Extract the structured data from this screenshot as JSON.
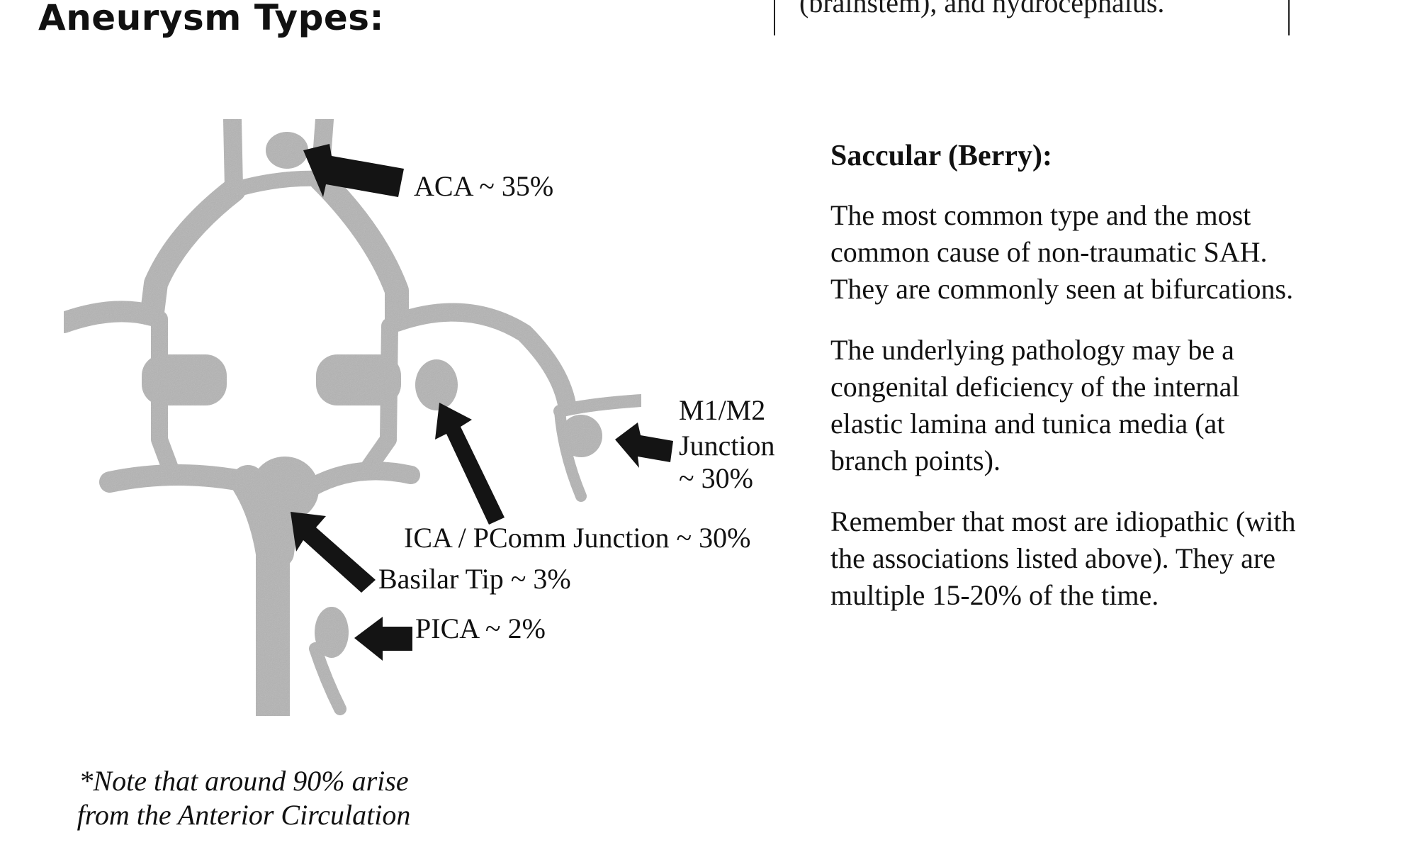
{
  "heading": "Aneurysm Types:",
  "top_box_text": "(brainstem), and hydrocephalus.",
  "labels": {
    "aca": "ACA ~ 35%",
    "m1m2_line1": "M1/M2",
    "m1m2_line2": "Junction",
    "m1m2_line3": "~ 30%",
    "ica": "ICA / PComm Junction ~ 30%",
    "basilar": "Basilar Tip ~ 3%",
    "pica": "PICA ~ 2%"
  },
  "note": {
    "line1": "*Note that around 90% arise",
    "line2": "from the Anterior Circulation"
  },
  "saccular": {
    "title": "Saccular (Berry):",
    "p1": "The most common type and the most common cause of non-traumatic SAH. They are commonly seen at bifurcations.",
    "p2": "The underlying pathology may be a congenital deficiency of the internal elastic lamina and tunica media (at branch points).",
    "p3": "Remember that most are idiopathic (with the associations listed above). They are multiple 15-20% of the time."
  },
  "colors": {
    "vessel": "#b4b4b4",
    "arrow": "#141414",
    "text": "#111111"
  }
}
